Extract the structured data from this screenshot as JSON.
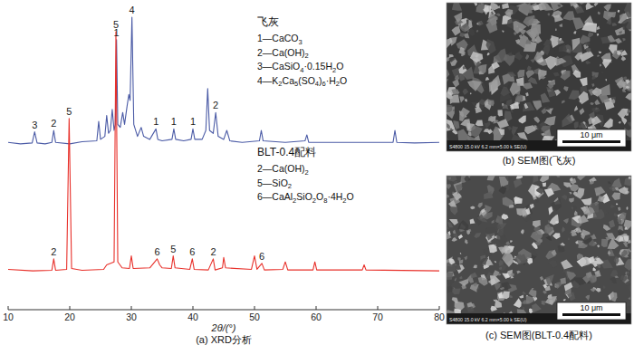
{
  "chart_data": {
    "type": "line",
    "caption": "(a) XRD分析",
    "x_label": "2θ/(°)",
    "xlim": [
      10,
      80
    ],
    "xticks": [
      10,
      20,
      30,
      40,
      50,
      60,
      70,
      80
    ],
    "ylim": [
      0,
      100
    ],
    "tick_labels": "x",
    "grid": false,
    "series": [
      {
        "name": "飞灰",
        "color": "#4b5ba6",
        "x": [
          10,
          12,
          13.9,
          14.3,
          14.7,
          16,
          17.1,
          17.4,
          17.7,
          20,
          22,
          24.4,
          24.7,
          25,
          25.7,
          26,
          26.3,
          26.6,
          26.9,
          27.2,
          27.4,
          27.6,
          27.8,
          28.2,
          28.6,
          28.9,
          29.3,
          29.6,
          29.8,
          30.1,
          30.4,
          31,
          31.6,
          32,
          33,
          34,
          34.3,
          35,
          36.6,
          36.9,
          37.2,
          38.5,
          39.7,
          40,
          40.3,
          41.5,
          42.1,
          42.4,
          42.7,
          43.3,
          43.7,
          44.1,
          45,
          45.5,
          46,
          48,
          50.8,
          51.1,
          51.4,
          55,
          58.2,
          58.5,
          58.8,
          63,
          67,
          72.5,
          72.8,
          73.1,
          76,
          80
        ],
        "values": [
          56,
          55.5,
          55.8,
          59.5,
          55.8,
          55.5,
          56,
          60,
          56,
          55.5,
          56.2,
          56.5,
          63,
          57,
          58,
          65,
          59,
          60,
          67,
          60,
          62,
          90.4,
          62,
          61,
          66,
          62,
          68,
          72,
          70,
          97.9,
          62,
          58,
          61,
          58,
          57,
          60.5,
          57,
          56.5,
          57,
          60.5,
          57,
          56.5,
          57,
          60.5,
          57,
          57,
          60,
          74,
          60,
          59,
          66,
          58,
          57,
          60,
          56.5,
          56,
          56.5,
          60,
          56.5,
          56,
          56.5,
          58.5,
          56,
          56,
          56,
          56,
          60,
          56,
          55.8,
          56
        ],
        "phases": [
          "1—CaCO3",
          "2—Ca(OH)2",
          "3—CaSiO4·0.15H2O",
          "4—K2Ca5(SO4)6·H2O"
        ],
        "annotations": [
          {
            "text": "3",
            "x": 14.3,
            "y": 59.5
          },
          {
            "text": "2",
            "x": 17.4,
            "y": 60
          },
          {
            "text": "1",
            "x": 27.6,
            "y": 90.4
          },
          {
            "text": "4",
            "x": 30.1,
            "y": 97.9
          },
          {
            "text": "1",
            "x": 34,
            "y": 60.5
          },
          {
            "text": "1",
            "x": 36.9,
            "y": 60.5
          },
          {
            "text": "1",
            "x": 40,
            "y": 60.5
          },
          {
            "text": "2",
            "x": 43.7,
            "y": 66
          }
        ]
      },
      {
        "name": "BLT-0.4配料",
        "color": "#e8302a",
        "x": [
          10,
          14,
          17.1,
          17.4,
          17.7,
          19.5,
          19.9,
          20.3,
          22,
          25.5,
          26,
          27.2,
          27.5,
          27.8,
          28.5,
          29.7,
          30,
          30.3,
          33,
          34.2,
          34.6,
          35,
          36.5,
          36.8,
          37.1,
          39.5,
          39.9,
          40.2,
          42.5,
          43.3,
          43.6,
          44.8,
          45,
          45.3,
          49.5,
          50,
          50.4,
          51.2,
          51.6,
          54.6,
          55,
          55.4,
          59.5,
          59.8,
          60.1,
          67.5,
          67.8,
          68.1,
          80
        ],
        "values": [
          13.5,
          13,
          13.2,
          17,
          13.2,
          13.5,
          64,
          13.8,
          13.2,
          13.5,
          15,
          16,
          93,
          16,
          14,
          13.8,
          18,
          13.8,
          14,
          17,
          15,
          14,
          13.8,
          18,
          14,
          13.5,
          17,
          13.5,
          13.3,
          17,
          13.3,
          14,
          17.5,
          14,
          13.5,
          18,
          13.5,
          15.5,
          13.3,
          13.5,
          16,
          13.3,
          13.3,
          16,
          13.3,
          13.3,
          15,
          13.3,
          13
        ],
        "phases": [
          "2—Ca(OH)2",
          "5—SiO2",
          "6—CaAl2SiO2O8·4H2O"
        ],
        "annotations": [
          {
            "text": "2",
            "x": 17.4,
            "y": 17
          },
          {
            "text": "5",
            "x": 19.9,
            "y": 64
          },
          {
            "text": "5",
            "x": 27.5,
            "y": 93
          },
          {
            "text": "6",
            "x": 34.2,
            "y": 17
          },
          {
            "text": "5",
            "x": 36.8,
            "y": 18
          },
          {
            "text": "6",
            "x": 39.9,
            "y": 17
          },
          {
            "text": "2",
            "x": 43.3,
            "y": 17
          },
          {
            "text": "6",
            "x": 51.2,
            "y": 15.5
          }
        ]
      }
    ]
  },
  "images": [
    {
      "caption": "(b) SEM图(飞灰)",
      "info": "S4800 15.0 kV 6.2 mm×5.00 k SE(U)",
      "scale_bar": "10 μm"
    },
    {
      "caption": "(c) SEM图(BLT-0.4配料)",
      "info": "S4800 15.0 kV 6.2 mm×5.00 k SE(U)",
      "scale_bar": "10 μm"
    }
  ]
}
